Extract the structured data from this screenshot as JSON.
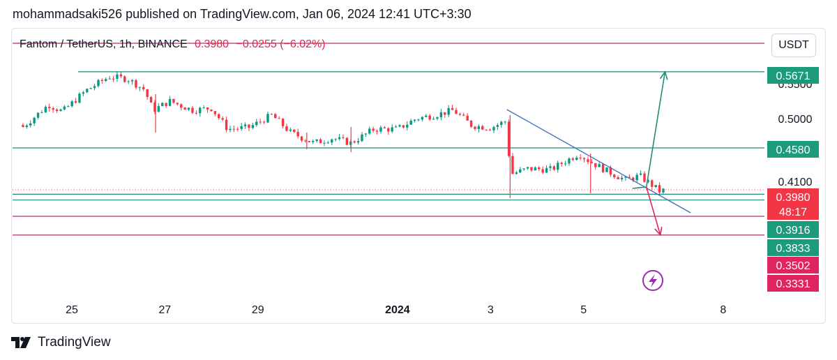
{
  "header": {
    "text": "mohammadsaki526 published on TradingView.com, Jan 06, 2024 12:41 UTC+3:30"
  },
  "legend": {
    "symbol": "Fantom / TetherUS, 1h, BINANCE",
    "price": "0.3980",
    "change": "−0.0255 (−6.02%)"
  },
  "toolbar": {
    "currency": "USDT"
  },
  "brand": {
    "name": "TradingView",
    "logo_icon": "tradingview-logo-icon"
  },
  "colors": {
    "up": "#089981",
    "down": "#f23645",
    "teal_line": "#1e8a78",
    "magenta_line": "#b0316f",
    "trend_line": "#3a6ebf",
    "badge_teal": "#1c9a7c",
    "badge_red": "#f23645",
    "badge_pink": "#e0245e"
  },
  "chart_data": {
    "type": "candlestick",
    "symbol": "Fantom / TetherUS",
    "interval": "1h",
    "exchange": "BINANCE",
    "y_axis_ticks": [
      "0.5500",
      "0.5000",
      "0.4500",
      "0.4100"
    ],
    "x_axis_ticks": [
      "25",
      "27",
      "29",
      "2024",
      "3",
      "5",
      "8"
    ],
    "price_badges": [
      {
        "label": "0.5671",
        "value": 0.5671,
        "color": "teal"
      },
      {
        "label": "0.4580",
        "value": 0.458,
        "color": "teal"
      },
      {
        "label": "0.3980",
        "value": 0.398,
        "color": "red"
      },
      {
        "label": "48:17",
        "value": 0.3935,
        "color": "red",
        "kind": "countdown"
      },
      {
        "label": "0.3916",
        "value": 0.3916,
        "color": "teal"
      },
      {
        "label": "0.3833",
        "value": 0.3833,
        "color": "teal"
      },
      {
        "label": "0.3502",
        "value": 0.3502,
        "color": "pink"
      },
      {
        "label": "0.3331",
        "value": 0.3331,
        "color": "pink"
      }
    ],
    "horizontal_lines": [
      {
        "value": 0.608,
        "color": "magenta"
      },
      {
        "value": 0.5671,
        "color": "teal"
      },
      {
        "value": 0.458,
        "color": "teal"
      },
      {
        "value": 0.3916,
        "color": "teal"
      },
      {
        "value": 0.3833,
        "color": "teal"
      },
      {
        "value": 0.36,
        "color": "magenta"
      },
      {
        "value": 0.3331,
        "color": "magenta"
      }
    ],
    "trendline": {
      "from": {
        "x": 3.35,
        "y": 0.513
      },
      "to": {
        "x": 7.3,
        "y": 0.365
      }
    },
    "projections": [
      {
        "direction": "up",
        "points": [
          {
            "x": 6.05,
            "y": 0.4
          },
          {
            "x": 6.35,
            "y": 0.402
          },
          {
            "x": 6.75,
            "y": 0.5671
          }
        ]
      },
      {
        "direction": "down",
        "points": [
          {
            "x": 6.35,
            "y": 0.402
          },
          {
            "x": 6.65,
            "y": 0.3331
          }
        ]
      }
    ],
    "price_path": [
      {
        "x": 23.95,
        "y": 0.488
      },
      {
        "x": 24.5,
        "y": 0.52
      },
      {
        "x": 24.8,
        "y": 0.51
      },
      {
        "x": 25.3,
        "y": 0.54
      },
      {
        "x": 25.8,
        "y": 0.56
      },
      {
        "x": 26.2,
        "y": 0.557
      },
      {
        "x": 26.55,
        "y": 0.542
      },
      {
        "x": 26.75,
        "y": 0.512
      },
      {
        "x": 27.1,
        "y": 0.525
      },
      {
        "x": 27.6,
        "y": 0.512
      },
      {
        "x": 28.0,
        "y": 0.515
      },
      {
        "x": 28.35,
        "y": 0.485
      },
      {
        "x": 28.8,
        "y": 0.487
      },
      {
        "x": 29.3,
        "y": 0.505
      },
      {
        "x": 29.7,
        "y": 0.48
      },
      {
        "x": 30.2,
        "y": 0.465
      },
      {
        "x": 30.6,
        "y": 0.472
      },
      {
        "x": 31.0,
        "y": 0.465
      },
      {
        "x": 31.5,
        "y": 0.485
      },
      {
        "x": 32.0,
        "y": 0.485
      },
      {
        "x": 32.4,
        "y": 0.5
      },
      {
        "x": 32.8,
        "y": 0.505
      },
      {
        "x": 33.2,
        "y": 0.512
      },
      {
        "x": 33.6,
        "y": 0.49
      },
      {
        "x": 34.0,
        "y": 0.487
      },
      {
        "x": 34.35,
        "y": 0.497
      },
      {
        "x": 34.42,
        "y": 0.42
      },
      {
        "x": 34.8,
        "y": 0.428
      },
      {
        "x": 35.3,
        "y": 0.427
      },
      {
        "x": 35.9,
        "y": 0.45
      },
      {
        "x": 36.1,
        "y": 0.44
      },
      {
        "x": 36.5,
        "y": 0.425
      },
      {
        "x": 36.9,
        "y": 0.412
      },
      {
        "x": 37.2,
        "y": 0.418
      },
      {
        "x": 37.5,
        "y": 0.403
      },
      {
        "x": 37.65,
        "y": 0.395
      },
      {
        "x": 37.75,
        "y": 0.398
      }
    ],
    "annotations": [
      {
        "kind": "lightning-icon",
        "x": 7.0,
        "y": 0.345
      }
    ]
  }
}
